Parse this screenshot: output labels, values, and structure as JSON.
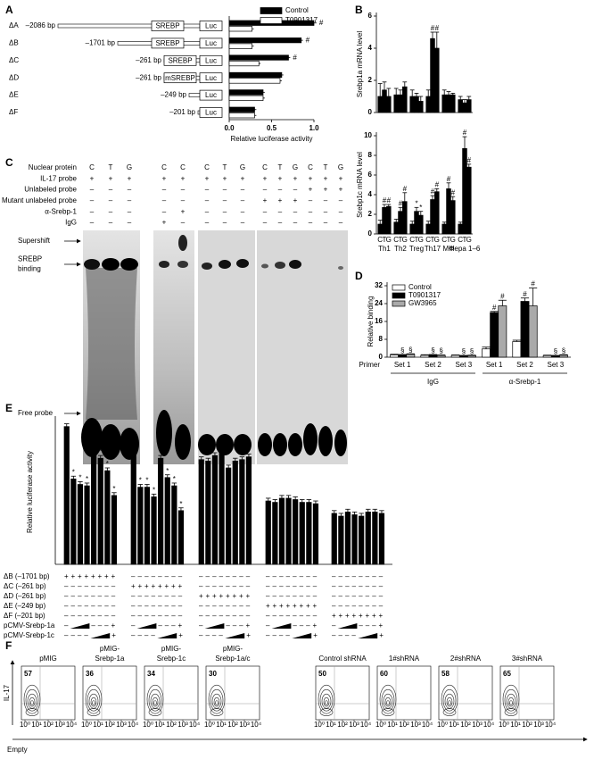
{
  "panel_labels": [
    "A",
    "B",
    "C",
    "D",
    "E",
    "F"
  ],
  "chart_data": [
    {
      "type": "hbar",
      "categories": [
        "ΔA",
        "ΔB",
        "ΔC",
        "ΔD",
        "ΔE",
        "ΔF"
      ],
      "constructs": [
        {
          "promoter": "–2086 bp",
          "element": "SREBP"
        },
        {
          "promoter": "–1701 bp",
          "element": "SREBP"
        },
        {
          "promoter": "–261 bp",
          "element": "SREBP"
        },
        {
          "promoter": "–261 bp",
          "element": "mSREBP"
        },
        {
          "promoter": "–249 bp"
        },
        {
          "promoter": "–201 bp"
        }
      ],
      "reporter": "Luc",
      "series": [
        {
          "name": "Control",
          "color": "#000000",
          "values": [
            1.0,
            0.85,
            0.7,
            0.62,
            0.4,
            0.3
          ],
          "errors": [
            0.03,
            0.02,
            0.02,
            0.02,
            0.02,
            0.02
          ],
          "annotations": [
            "#",
            "#",
            "#",
            null,
            null,
            null
          ]
        },
        {
          "name": "T0901317",
          "color": "#ffffff",
          "values": [
            0.27,
            0.27,
            0.35,
            0.6,
            0.4,
            0.3
          ],
          "errors": [
            0.02,
            0.02,
            0.02,
            0.02,
            0.02,
            0.02
          ],
          "annotations": [
            null,
            null,
            null,
            null,
            null,
            null
          ]
        }
      ],
      "xlim": [
        0,
        1.0
      ],
      "xticks": [
        {
          "value": 0,
          "label": "0.0"
        },
        {
          "value": 0.5,
          "label": "0.5"
        },
        {
          "value": 1,
          "label": "1.0"
        }
      ],
      "xlabel": "Relative luciferase activity",
      "legend": "top-right"
    },
    {
      "type": "bar",
      "ylabel": "Srebp1a mRNA level",
      "series": [
        {
          "color": "#000000",
          "values": [
            1.0,
            1.1,
            1.0,
            1.0,
            1.1,
            0.8
          ],
          "errors": [
            0.8,
            0.4,
            0.4,
            0.4,
            0.3,
            0.2
          ],
          "annotations": [
            null,
            null,
            null,
            null,
            null,
            null
          ]
        },
        {
          "color": "#000000",
          "values": [
            1.4,
            1.1,
            1.0,
            4.6,
            1.1,
            0.6
          ],
          "errors": [
            0.5,
            0.3,
            0.2,
            0.4,
            0.2,
            0.2
          ],
          "annotations": [
            null,
            null,
            null,
            "#",
            null,
            null
          ]
        },
        {
          "color": "#000000",
          "values": [
            1.0,
            1.6,
            0.7,
            4.0,
            1.1,
            0.8
          ],
          "errors": [
            0.5,
            0.3,
            0.3,
            1.0,
            0.1,
            0.2
          ],
          "annotations": [
            null,
            null,
            null,
            "#",
            null,
            null
          ]
        }
      ],
      "ylim": [
        0,
        6
      ],
      "yticks": [
        0,
        2,
        4,
        6
      ]
    },
    {
      "type": "bar",
      "ylabel": "Srebp1c mRNA level",
      "categories": [
        "Th1",
        "Th2",
        "Treg",
        "Th17",
        "MΦ",
        "Hepa 1–6"
      ],
      "series": [
        {
          "name": "C",
          "color": "#000000",
          "values": [
            1.0,
            1.2,
            1.0,
            1.0,
            1.0,
            1.0
          ],
          "errors": [
            0.4,
            0.3,
            0.3,
            0.3,
            0.2,
            0.2
          ],
          "annotations": [
            null,
            null,
            null,
            null,
            null,
            null
          ]
        },
        {
          "name": "T",
          "color": "#000000",
          "values": [
            2.7,
            2.3,
            2.3,
            3.5,
            4.6,
            8.7
          ],
          "errors": [
            0.3,
            0.4,
            0.4,
            0.4,
            0.6,
            1.2
          ],
          "annotations": [
            "#",
            "#",
            "*",
            "#",
            "#",
            "#"
          ]
        },
        {
          "name": "G",
          "color": "#000000",
          "values": [
            2.8,
            3.3,
            1.9,
            4.3,
            3.4,
            6.8
          ],
          "errors": [
            0.2,
            0.9,
            0.4,
            0.3,
            0.4,
            0.3
          ],
          "annotations": [
            "#",
            "#",
            "*",
            "#",
            "#",
            "#"
          ]
        }
      ],
      "ylim": [
        0,
        10
      ],
      "yticks": [
        0,
        2,
        4,
        6,
        8,
        10
      ]
    },
    {
      "type": "bar",
      "ylabel": "Relative binding",
      "xlabel": "Primer",
      "categories": [
        "Set 1",
        "Set 2",
        "Set 3",
        "Set 1",
        "Set 2",
        "Set 3"
      ],
      "groups": [
        "IgG",
        "α-Srebp-1"
      ],
      "series": [
        {
          "name": "Control",
          "color": "#ffffff",
          "values": [
            1.0,
            0.8,
            0.8,
            3.7,
            7.0,
            0.7
          ],
          "errors": [
            0.3,
            0.3,
            0.2,
            0.8,
            0.6,
            0.2
          ],
          "annotations": [
            null,
            null,
            null,
            null,
            null,
            null
          ]
        },
        {
          "name": "T0901317",
          "color": "#000000",
          "values": [
            1.0,
            1.0,
            0.6,
            20,
            25,
            0.6
          ],
          "errors": [
            0.2,
            0.2,
            0.2,
            0.5,
            1.5,
            0.2
          ],
          "annotations": [
            "§",
            "§",
            "§",
            "#",
            "#",
            "§"
          ]
        },
        {
          "name": "GW3965",
          "color": "#aaaaaa",
          "values": [
            1.3,
            0.8,
            0.7,
            23,
            23,
            0.9
          ],
          "errors": [
            0.2,
            0.2,
            0.2,
            2.5,
            8.0,
            0.2
          ],
          "annotations": [
            "§",
            "§",
            "§",
            "#",
            "#",
            "§"
          ]
        }
      ],
      "ylim": [
        0,
        32
      ],
      "yticks": [
        0,
        8,
        16,
        24,
        32
      ],
      "legend": "top-left"
    },
    {
      "type": "bar",
      "ylabel": "Relative luciferase activity",
      "color": "#000000",
      "values": [
        1.0,
        0.62,
        0.58,
        0.57,
        0.82,
        0.77,
        0.68,
        0.5,
        0.84,
        0.56,
        0.56,
        0.49,
        0.77,
        0.63,
        0.57,
        0.39,
        0.76,
        0.75,
        0.79,
        0.87,
        0.7,
        0.75,
        0.76,
        0.78,
        0.46,
        0.45,
        0.48,
        0.48,
        0.47,
        0.45,
        0.45,
        0.44,
        0.37,
        0.35,
        0.38,
        0.36,
        0.35,
        0.38,
        0.38,
        0.37
      ],
      "errors": [
        0.02,
        0.02,
        0.02,
        0.02,
        0.02,
        0.02,
        0.02,
        0.02,
        0.02,
        0.02,
        0.02,
        0.02,
        0.02,
        0.02,
        0.02,
        0.02,
        0.02,
        0.02,
        0.02,
        0.02,
        0.02,
        0.02,
        0.02,
        0.02,
        0.02,
        0.02,
        0.02,
        0.02,
        0.02,
        0.02,
        0.02,
        0.02,
        0.02,
        0.02,
        0.02,
        0.02,
        0.02,
        0.02,
        0.02,
        0.02
      ],
      "annotations": [
        null,
        "*",
        "*",
        "*",
        "*",
        "*",
        "*",
        "*",
        null,
        "*",
        "*",
        "*",
        "*",
        "*",
        "*",
        "*",
        null,
        null,
        null,
        null,
        null,
        null,
        null,
        null,
        null,
        null,
        null,
        null,
        null,
        null,
        null,
        null,
        null,
        null,
        null,
        null,
        null,
        null,
        null,
        null
      ],
      "ylim": [
        0,
        1.05
      ],
      "conditions": [
        {
          "label": "ΔB (–1701 bp)",
          "groups": [
            "+ + + + + + + +",
            "– – – – – – – –",
            "– – – – – – – –",
            "– – – – – – – –",
            "– – – – – – – –"
          ]
        },
        {
          "label": "ΔC (–261 bp)",
          "groups": [
            "– – – – – – – –",
            "+ + + + + + + +",
            "– – – – – – – –",
            "– – – – – – – –",
            "– – – – – – – –"
          ]
        },
        {
          "label": "ΔD (–261 bp)",
          "groups": [
            "– – – – – – – –",
            "– – – – – – – –",
            "+ + + + + + + +",
            "– – – – – – – –",
            "– – – – – – – –"
          ]
        },
        {
          "label": "ΔE (–249 bp)",
          "groups": [
            "– – – – – – – –",
            "– – – – – – – –",
            "– – – – – – – –",
            "+ + + + + + + +",
            "– – – – – – – –"
          ]
        },
        {
          "label": "ΔF (–201 bp)",
          "groups": [
            "– – – – – – – –",
            "– – – – – – – –",
            "– – – – – – – –",
            "– – – – – – – –",
            "+ + + + + + + +"
          ]
        }
      ],
      "doses": [
        {
          "label": "pCMV-Srebp-1a",
          "before": "–",
          "after": "– – – +"
        },
        {
          "label": "pCMV-Srebp-1c",
          "before": "– – – –",
          "after": "+"
        }
      ]
    }
  ],
  "gel": {
    "rows": [
      {
        "label": "Nuclear protein",
        "lanes": [
          "C",
          "T",
          "G",
          "C",
          "C",
          "C",
          "T",
          "G",
          "C",
          "T",
          "G",
          "C",
          "T",
          "G"
        ]
      },
      {
        "label": "IL-17 probe",
        "lanes": [
          "+",
          "+",
          "+",
          "+",
          "+",
          "+",
          "+",
          "+",
          "+",
          "+",
          "+",
          "+",
          "+",
          "+"
        ]
      },
      {
        "label": "Unlabeled probe",
        "lanes": [
          "–",
          "–",
          "–",
          "–",
          "–",
          "–",
          "–",
          "–",
          "–",
          "–",
          "–",
          "+",
          "+",
          "+"
        ]
      },
      {
        "label": "Mutant unlabeled probe",
        "lanes": [
          "–",
          "–",
          "–",
          "–",
          "–",
          "–",
          "–",
          "–",
          "+",
          "+",
          "+",
          "–",
          "–",
          "–"
        ]
      },
      {
        "label": "α-Srebp-1",
        "lanes": [
          "–",
          "–",
          "–",
          "–",
          "+",
          "–",
          "–",
          "–",
          "–",
          "–",
          "–",
          "–",
          "–",
          "–"
        ]
      },
      {
        "label": "IgG",
        "lanes": [
          "–",
          "–",
          "–",
          "+",
          "–",
          "–",
          "–",
          "–",
          "–",
          "–",
          "–",
          "–",
          "–",
          "–"
        ]
      }
    ],
    "markers": [
      [
        "Supershift"
      ],
      [
        "SREBP",
        "binding"
      ],
      [
        "Free probe"
      ]
    ]
  },
  "flow": {
    "y_label": "IL-17",
    "x_label": "Empty",
    "ticks": [
      {
        "value": 1,
        "label": "10⁰"
      },
      {
        "value": 10,
        "label": "10¹"
      },
      {
        "value": 100,
        "label": "10²"
      },
      {
        "value": 1000,
        "label": "10³"
      },
      {
        "value": 10000,
        "label": "10⁴"
      }
    ],
    "plots": [
      {
        "title": [
          "pMIG"
        ],
        "percent": 57
      },
      {
        "title": [
          "pMIG-",
          "Srebp-1a"
        ],
        "percent": 36
      },
      {
        "title": [
          "pMIG-",
          "Srebp-1c"
        ],
        "percent": 34
      },
      {
        "title": [
          "pMIG-",
          "Srebp-1a/c"
        ],
        "percent": 30
      },
      {
        "title": [
          "Control shRNA"
        ],
        "percent": 50
      },
      {
        "title": [
          "1#shRNA"
        ],
        "percent": 60
      },
      {
        "title": [
          "2#shRNA"
        ],
        "percent": 58
      },
      {
        "title": [
          "3#shRNA"
        ],
        "percent": 65
      }
    ]
  }
}
